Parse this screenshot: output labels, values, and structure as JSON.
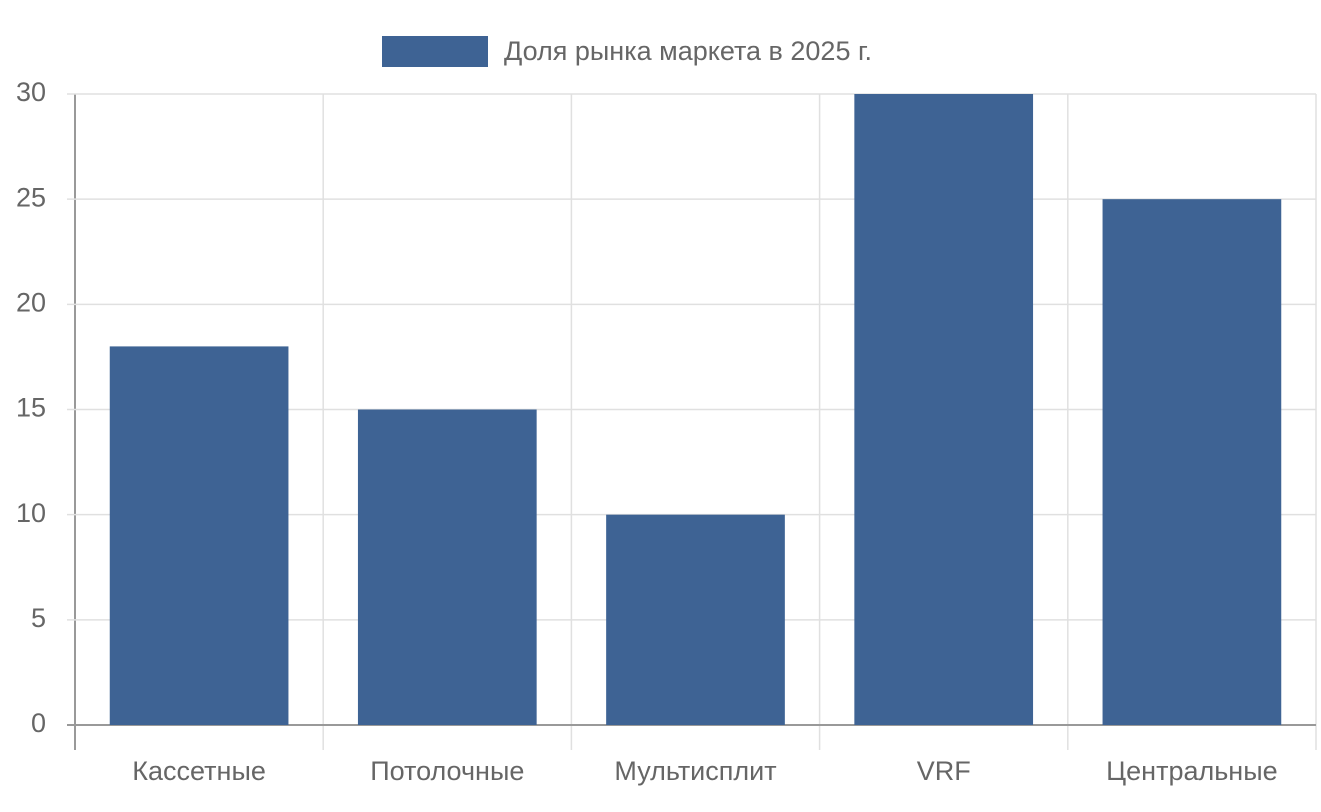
{
  "chart_data": {
    "type": "bar",
    "categories": [
      "Кассетные",
      "Потолочные",
      "Мультисплит",
      "VRF",
      "Центральные"
    ],
    "series": [
      {
        "name": "Доля рынка маркета в 2025 г.",
        "color": "#3e6394",
        "values": [
          18,
          15,
          10,
          30,
          25
        ]
      }
    ],
    "ylim": [
      0,
      30
    ],
    "yticks": [
      0,
      5,
      10,
      15,
      20,
      25,
      30
    ],
    "grid": true,
    "legend": "top"
  }
}
